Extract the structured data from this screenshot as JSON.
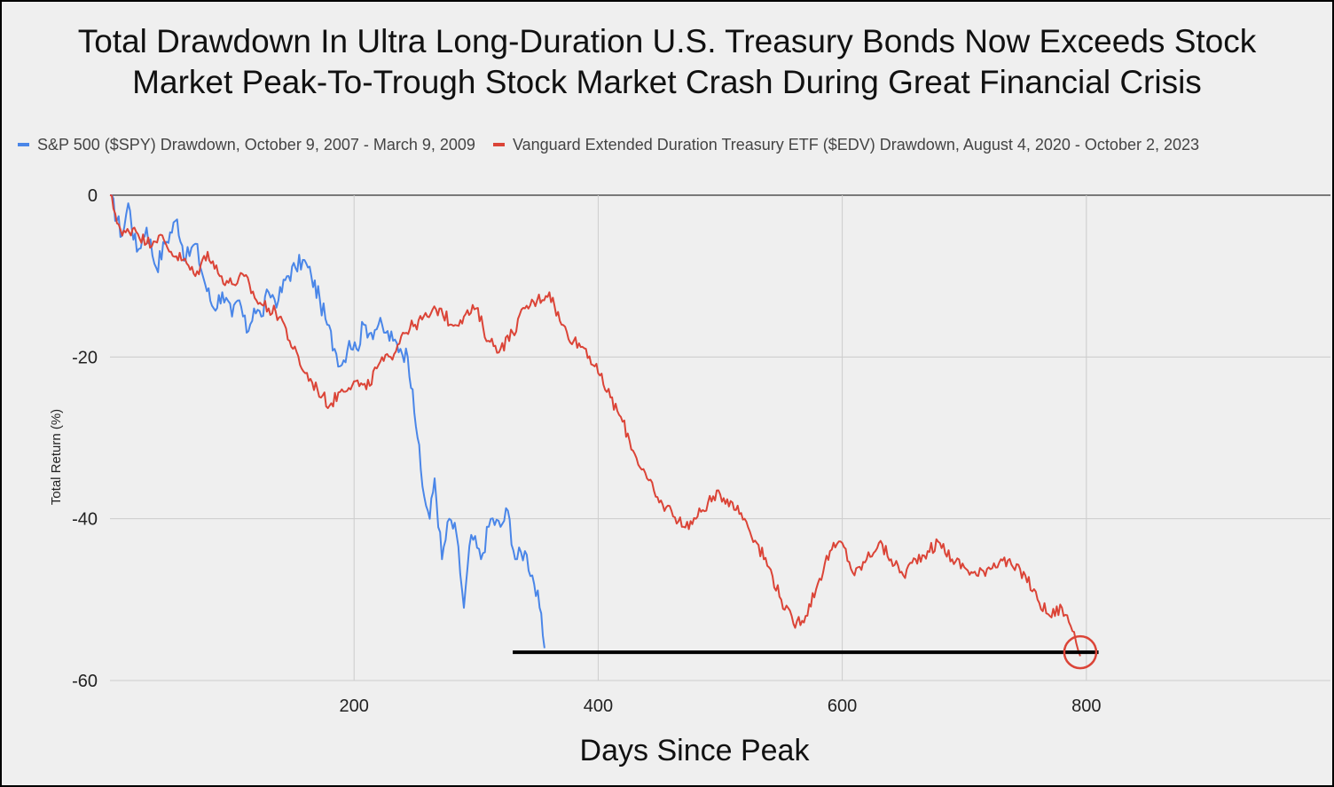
{
  "chart_data": {
    "type": "line",
    "title": [
      "Total Drawdown In Ultra Long-Duration U.S. Treasury Bonds Now Exceeds Stock",
      "Market Peak-To-Trough Stock Market Crash During Great Financial Crisis"
    ],
    "xlabel": "Days Since Peak",
    "ylabel": "Total Return (%)",
    "xlim": [
      0,
      1000
    ],
    "ylim": [
      -60,
      0
    ],
    "xticks": [
      200,
      400,
      600,
      800
    ],
    "yticks": [
      0,
      -20,
      -40,
      -60
    ],
    "grid": true,
    "legend_position": "top-left",
    "series": [
      {
        "name": "S&P 500 ($SPY) Drawdown, October 9, 2007 - March 9, 2009",
        "color": "#4a86e8",
        "points": [
          [
            0,
            0
          ],
          [
            10,
            -5
          ],
          [
            15,
            -1
          ],
          [
            22,
            -7
          ],
          [
            30,
            -4
          ],
          [
            38,
            -9
          ],
          [
            45,
            -6
          ],
          [
            55,
            -3
          ],
          [
            62,
            -8
          ],
          [
            70,
            -6
          ],
          [
            78,
            -11
          ],
          [
            85,
            -14
          ],
          [
            92,
            -12
          ],
          [
            100,
            -15
          ],
          [
            106,
            -13
          ],
          [
            112,
            -17
          ],
          [
            118,
            -14
          ],
          [
            124,
            -15
          ],
          [
            130,
            -12
          ],
          [
            138,
            -13
          ],
          [
            145,
            -10
          ],
          [
            152,
            -9
          ],
          [
            158,
            -8
          ],
          [
            165,
            -10
          ],
          [
            172,
            -13
          ],
          [
            178,
            -16
          ],
          [
            184,
            -19
          ],
          [
            190,
            -21
          ],
          [
            196,
            -18
          ],
          [
            202,
            -19
          ],
          [
            208,
            -16
          ],
          [
            214,
            -17
          ],
          [
            220,
            -16
          ],
          [
            226,
            -17
          ],
          [
            232,
            -18
          ],
          [
            238,
            -19
          ],
          [
            244,
            -20
          ],
          [
            248,
            -24
          ],
          [
            252,
            -30
          ],
          [
            256,
            -36
          ],
          [
            262,
            -40
          ],
          [
            266,
            -35
          ],
          [
            272,
            -45
          ],
          [
            278,
            -40
          ],
          [
            284,
            -42
          ],
          [
            290,
            -51
          ],
          [
            296,
            -42
          ],
          [
            304,
            -45
          ],
          [
            312,
            -40
          ],
          [
            320,
            -41
          ],
          [
            326,
            -39
          ],
          [
            332,
            -45
          ],
          [
            340,
            -44
          ],
          [
            346,
            -47
          ],
          [
            352,
            -51
          ],
          [
            356,
            -56
          ]
        ]
      },
      {
        "name": "Vanguard Extended Duration Treasury ETF ($EDV) Drawdown, August 4, 2020 - October 2, 2023",
        "color": "#db4437",
        "points": [
          [
            0,
            0
          ],
          [
            10,
            -5
          ],
          [
            20,
            -4
          ],
          [
            30,
            -6
          ],
          [
            40,
            -5
          ],
          [
            50,
            -7
          ],
          [
            60,
            -8
          ],
          [
            70,
            -10
          ],
          [
            80,
            -7
          ],
          [
            90,
            -10
          ],
          [
            100,
            -11
          ],
          [
            110,
            -10
          ],
          [
            120,
            -13
          ],
          [
            130,
            -14
          ],
          [
            140,
            -15
          ],
          [
            150,
            -19
          ],
          [
            160,
            -22
          ],
          [
            170,
            -24
          ],
          [
            180,
            -26
          ],
          [
            190,
            -24
          ],
          [
            200,
            -23
          ],
          [
            210,
            -24
          ],
          [
            220,
            -21
          ],
          [
            230,
            -20
          ],
          [
            240,
            -17
          ],
          [
            250,
            -16
          ],
          [
            260,
            -15
          ],
          [
            270,
            -14
          ],
          [
            280,
            -16
          ],
          [
            290,
            -15
          ],
          [
            300,
            -14
          ],
          [
            310,
            -18
          ],
          [
            320,
            -19
          ],
          [
            330,
            -17
          ],
          [
            340,
            -14
          ],
          [
            350,
            -13
          ],
          [
            360,
            -12
          ],
          [
            370,
            -16
          ],
          [
            380,
            -18
          ],
          [
            390,
            -19
          ],
          [
            400,
            -22
          ],
          [
            410,
            -25
          ],
          [
            420,
            -28
          ],
          [
            430,
            -32
          ],
          [
            440,
            -35
          ],
          [
            450,
            -38
          ],
          [
            460,
            -39
          ],
          [
            470,
            -41
          ],
          [
            480,
            -40
          ],
          [
            490,
            -38
          ],
          [
            500,
            -37
          ],
          [
            510,
            -38
          ],
          [
            520,
            -40
          ],
          [
            530,
            -43
          ],
          [
            540,
            -46
          ],
          [
            550,
            -50
          ],
          [
            560,
            -53
          ],
          [
            570,
            -52
          ],
          [
            580,
            -48
          ],
          [
            590,
            -44
          ],
          [
            600,
            -43
          ],
          [
            610,
            -47
          ],
          [
            620,
            -45
          ],
          [
            630,
            -43
          ],
          [
            640,
            -45
          ],
          [
            650,
            -47
          ],
          [
            660,
            -45
          ],
          [
            670,
            -44
          ],
          [
            680,
            -43
          ],
          [
            690,
            -45
          ],
          [
            700,
            -46
          ],
          [
            710,
            -47
          ],
          [
            720,
            -46
          ],
          [
            730,
            -45
          ],
          [
            740,
            -46
          ],
          [
            750,
            -47
          ],
          [
            760,
            -50
          ],
          [
            770,
            -52
          ],
          [
            780,
            -51
          ],
          [
            790,
            -54
          ],
          [
            795,
            -57
          ]
        ]
      }
    ],
    "annotations": [
      {
        "type": "hline",
        "y": -56.5,
        "x_start": 330,
        "x_end": 810,
        "color": "#000000"
      },
      {
        "type": "circle",
        "x": 795,
        "y": -56.5,
        "color": "#db4437"
      }
    ]
  }
}
